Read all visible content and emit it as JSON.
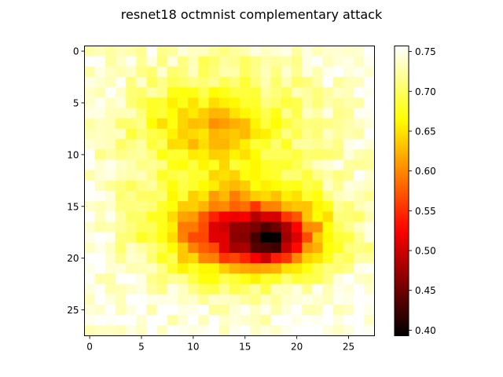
{
  "chart_data": {
    "type": "heatmap",
    "title": "resnet18 octmnist complementary attack",
    "xlabel": "",
    "ylabel": "",
    "x_range": [
      -0.5,
      27.5
    ],
    "y_range": [
      27.5,
      -0.5
    ],
    "x_ticks": [
      0,
      5,
      10,
      15,
      20,
      25
    ],
    "y_ticks": [
      0,
      5,
      10,
      15,
      20,
      25
    ],
    "grid": false,
    "colormap": "hot",
    "colorbar": {
      "min": 0.393,
      "max": 0.757,
      "ticks": [
        0.4,
        0.45,
        0.5,
        0.55,
        0.6,
        0.65,
        0.7,
        0.75
      ],
      "tick_labels": [
        "0.40",
        "0.45",
        "0.50",
        "0.55",
        "0.60",
        "0.65",
        "0.70",
        "0.75"
      ],
      "placement": "right"
    },
    "size": [
      28,
      28
    ],
    "values": []
  }
}
